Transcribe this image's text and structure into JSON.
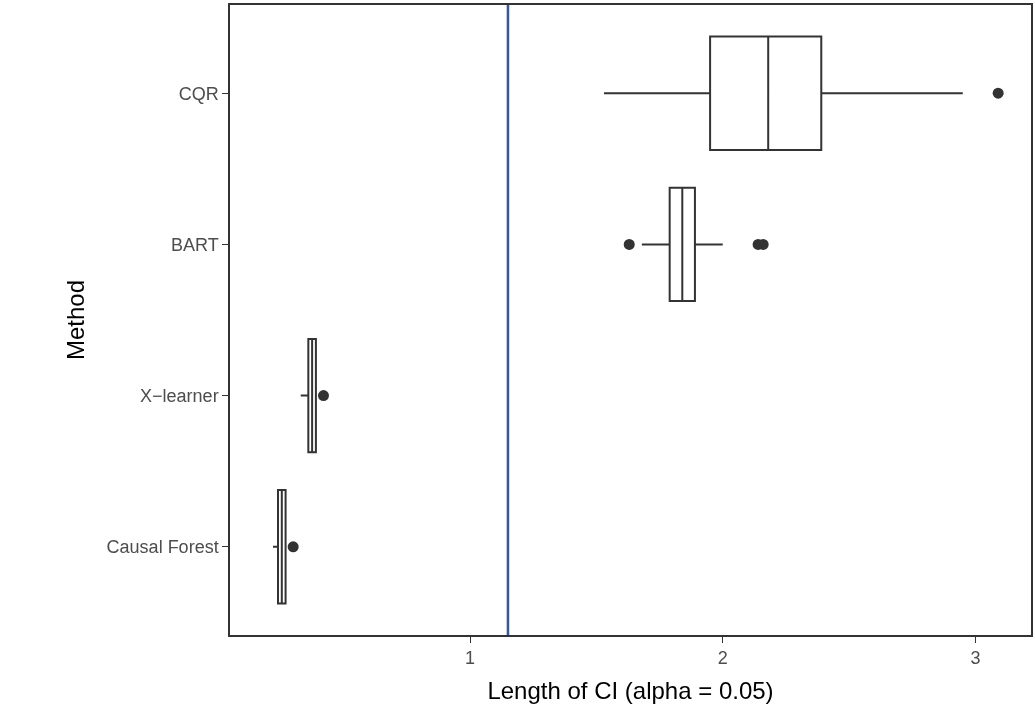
{
  "chart_data": {
    "type": "box",
    "orientation": "horizontal",
    "xlabel": "Length of CI (alpha = 0.05)",
    "ylabel": "Method",
    "categories": [
      "CQR",
      "BART",
      "X−learner",
      "Causal Forest"
    ],
    "boxes": [
      {
        "low": 1.53,
        "q1": 1.95,
        "median": 2.18,
        "q3": 2.39,
        "high": 2.95,
        "outliers": [
          3.09
        ]
      },
      {
        "low": 1.68,
        "q1": 1.79,
        "median": 1.84,
        "q3": 1.89,
        "high": 2.0,
        "outliers": [
          1.63,
          2.14,
          2.16
        ]
      },
      {
        "low": 0.33,
        "q1": 0.36,
        "median": 0.375,
        "q3": 0.39,
        "high": 0.39,
        "outliers": [
          0.42
        ]
      },
      {
        "low": 0.22,
        "q1": 0.24,
        "median": 0.255,
        "q3": 0.27,
        "high": 0.27,
        "outliers": [
          0.3
        ]
      }
    ],
    "color": "#333333",
    "xlim": [
      0.05,
      3.22
    ],
    "xticks": [
      1,
      2,
      3
    ],
    "ref_lines": [
      {
        "axis": "x",
        "value": 1.15,
        "color": "#3355aa"
      }
    ]
  }
}
